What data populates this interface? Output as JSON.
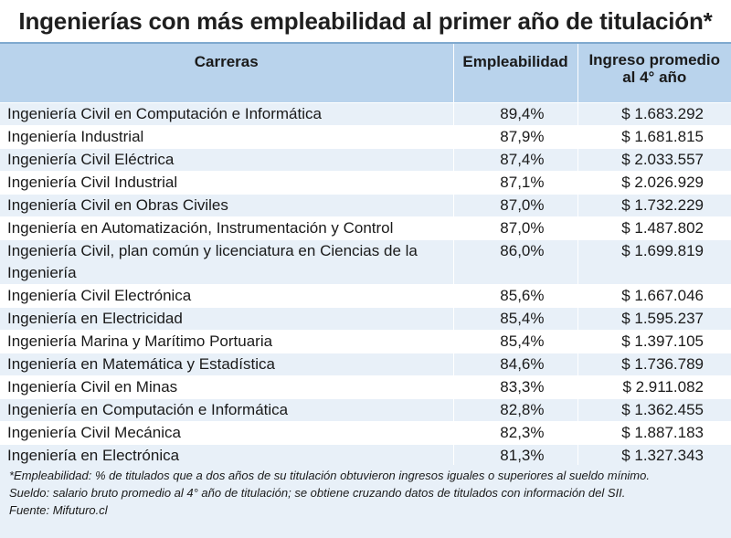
{
  "title": "Ingenierías con más empleabilidad al primer año de titulación*",
  "table": {
    "headers": {
      "carreras": "Carreras",
      "empleabilidad": "Empleabilidad",
      "ingreso_line1": "Ingreso promedio",
      "ingreso_line2": "al 4° año"
    },
    "rows": [
      {
        "carrera": "Ingeniería Civil en Computación e Informática",
        "empleabilidad": "89,4%",
        "ingreso": "$ 1.683.292"
      },
      {
        "carrera": "Ingeniería Industrial",
        "empleabilidad": "87,9%",
        "ingreso": "$ 1.681.815"
      },
      {
        "carrera": "Ingeniería Civil Eléctrica",
        "empleabilidad": "87,4%",
        "ingreso": "$ 2.033.557"
      },
      {
        "carrera": "Ingeniería Civil Industrial",
        "empleabilidad": "87,1%",
        "ingreso": "$ 2.026.929"
      },
      {
        "carrera": "Ingeniería Civil en Obras Civiles",
        "empleabilidad": "87,0%",
        "ingreso": "$ 1.732.229"
      },
      {
        "carrera": "Ingeniería en Automatización, Instrumentación y Control",
        "empleabilidad": "87,0%",
        "ingreso": "$ 1.487.802"
      },
      {
        "carrera": "Ingeniería Civil, plan común y licenciatura en Ciencias de la Ingeniería",
        "empleabilidad": "86,0%",
        "ingreso": "$ 1.699.819"
      },
      {
        "carrera": "Ingeniería Civil Electrónica",
        "empleabilidad": "85,6%",
        "ingreso": "$ 1.667.046"
      },
      {
        "carrera": "Ingeniería en Electricidad",
        "empleabilidad": "85,4%",
        "ingreso": "$ 1.595.237"
      },
      {
        "carrera": "Ingeniería Marina y Marítimo Portuaria",
        "empleabilidad": "85,4%",
        "ingreso": "$ 1.397.105"
      },
      {
        "carrera": "Ingeniería en Matemática y Estadística",
        "empleabilidad": "84,6%",
        "ingreso": "$ 1.736.789"
      },
      {
        "carrera": "Ingeniería Civil en Minas",
        "empleabilidad": "83,3%",
        "ingreso": "$ 2.911.082"
      },
      {
        "carrera": "Ingeniería en Computación e Informática",
        "empleabilidad": "82,8%",
        "ingreso": "$ 1.362.455"
      },
      {
        "carrera": "Ingeniería Civil Mecánica",
        "empleabilidad": "82,3%",
        "ingreso": "$ 1.887.183"
      },
      {
        "carrera": "Ingeniería en Electrónica",
        "empleabilidad": "81,3%",
        "ingreso": "$ 1.327.343"
      }
    ]
  },
  "notes": {
    "empleabilidad": "*Empleabilidad: % de titulados que a dos años de su titulación obtuvieron ingresos iguales o superiores al sueldo mínimo.",
    "sueldo": "Sueldo: salario bruto promedio al 4° año de titulación; se obtiene cruzando datos de titulados con información del SII.",
    "fuente": "Fuente: Mifuturo.cl"
  },
  "colors": {
    "header_bg": "#b9d3ec",
    "stripe_bg": "#e8f0f8",
    "accent_line": "#7fa9cf"
  }
}
